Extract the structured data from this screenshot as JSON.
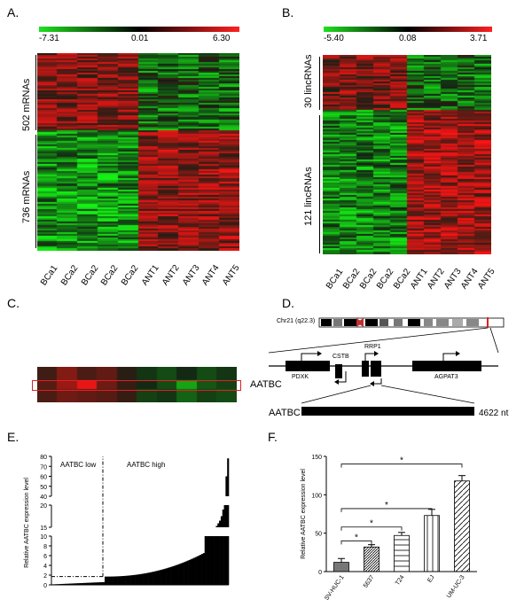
{
  "panels": {
    "a": {
      "letter": "A.",
      "colorbar": {
        "min": "-7.31",
        "mid": "0.01",
        "max": "6.30"
      },
      "groups": [
        "502 mRNAs",
        "736 mRNAs"
      ],
      "samples": [
        "BCa1",
        "BCa2",
        "BCa2",
        "BCa2",
        "BCa2",
        "ANT1",
        "ANT2",
        "ANT3",
        "ANT4",
        "ANT5"
      ]
    },
    "b": {
      "letter": "B.",
      "colorbar": {
        "min": "-5.40",
        "mid": "0.08",
        "max": "3.71"
      },
      "groups": [
        "30 lincRNAs",
        "121 lincRNAs"
      ],
      "samples": [
        "BCa1",
        "BCa2",
        "BCa2",
        "BCa2",
        "BCa2",
        "ANT1",
        "ANT2",
        "ANT3",
        "ANT4",
        "ANT5"
      ]
    },
    "c": {
      "letter": "C.",
      "label": "AATBC"
    },
    "d": {
      "letter": "D.",
      "chrom": "Chr21 (q22.3)",
      "genes": [
        "PDXK",
        "CSTB",
        "RRP1",
        "AGPAT3"
      ],
      "transcript": "AATBC",
      "length": "4622 nt"
    },
    "e": {
      "letter": "E.",
      "low_label": "AATBC low",
      "high_label": "AATBC high",
      "ylabel": "Relative AATBC expression level",
      "yticks_top": [
        "80",
        "70",
        "60",
        "50",
        "40"
      ],
      "yticks_mid": [
        "20",
        "15"
      ],
      "yticks_low": [
        "10",
        "8",
        "6",
        "4",
        "2",
        "0"
      ]
    },
    "f": {
      "letter": "F.",
      "ylabel": "Relative AATBC expression level",
      "sig": "*"
    }
  },
  "chart_data": [
    {
      "type": "bar",
      "categories": [
        "SV-HUC-1",
        "5637",
        "T24",
        "EJ",
        "UM-UC-3"
      ],
      "values": [
        12,
        32,
        47,
        73,
        118
      ],
      "errors": [
        5,
        3,
        4,
        8,
        7
      ],
      "ylabel": "Relative AATBC expression level",
      "ylim": [
        0,
        150
      ],
      "yticks": [
        0,
        50,
        100,
        150
      ],
      "significance": [
        [
          "SV-HUC-1",
          "5637"
        ],
        [
          "SV-HUC-1",
          "T24"
        ],
        [
          "SV-HUC-1",
          "EJ"
        ],
        [
          "SV-HUC-1",
          "UM-UC-3"
        ]
      ]
    },
    {
      "type": "bar",
      "ylabel": "Relative AATBC expression level",
      "low_label": "AATBC low",
      "high_label": "AATBC high",
      "cutoff": 1.7,
      "yticks": [
        0,
        2,
        4,
        6,
        8,
        10,
        15,
        20,
        40,
        50,
        60,
        70,
        80
      ]
    }
  ],
  "colors": {
    "up": "#ff2020",
    "down": "#20e020",
    "mid": "#000000",
    "highlight": "#e02020"
  }
}
